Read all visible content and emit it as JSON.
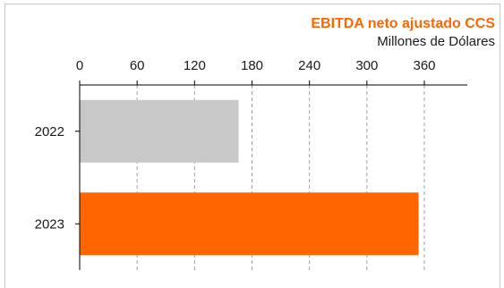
{
  "chart_data": {
    "type": "bar",
    "orientation": "horizontal",
    "title": "EBITDA neto ajustado CCS",
    "subtitle": "Millones de Dólares",
    "categories": [
      "2022",
      "2023"
    ],
    "values": [
      166,
      354
    ],
    "bar_colors": [
      "#c8c8c8",
      "#ff6600"
    ],
    "title_color": "#ff6600",
    "xlim": [
      0,
      400
    ],
    "xticks": [
      "0",
      "60",
      "120",
      "180",
      "240",
      "300",
      "360"
    ],
    "xtick_values": [
      0,
      60,
      120,
      180,
      240,
      300,
      360
    ],
    "x_axis_position": "top",
    "grid": true,
    "legend": "none"
  }
}
